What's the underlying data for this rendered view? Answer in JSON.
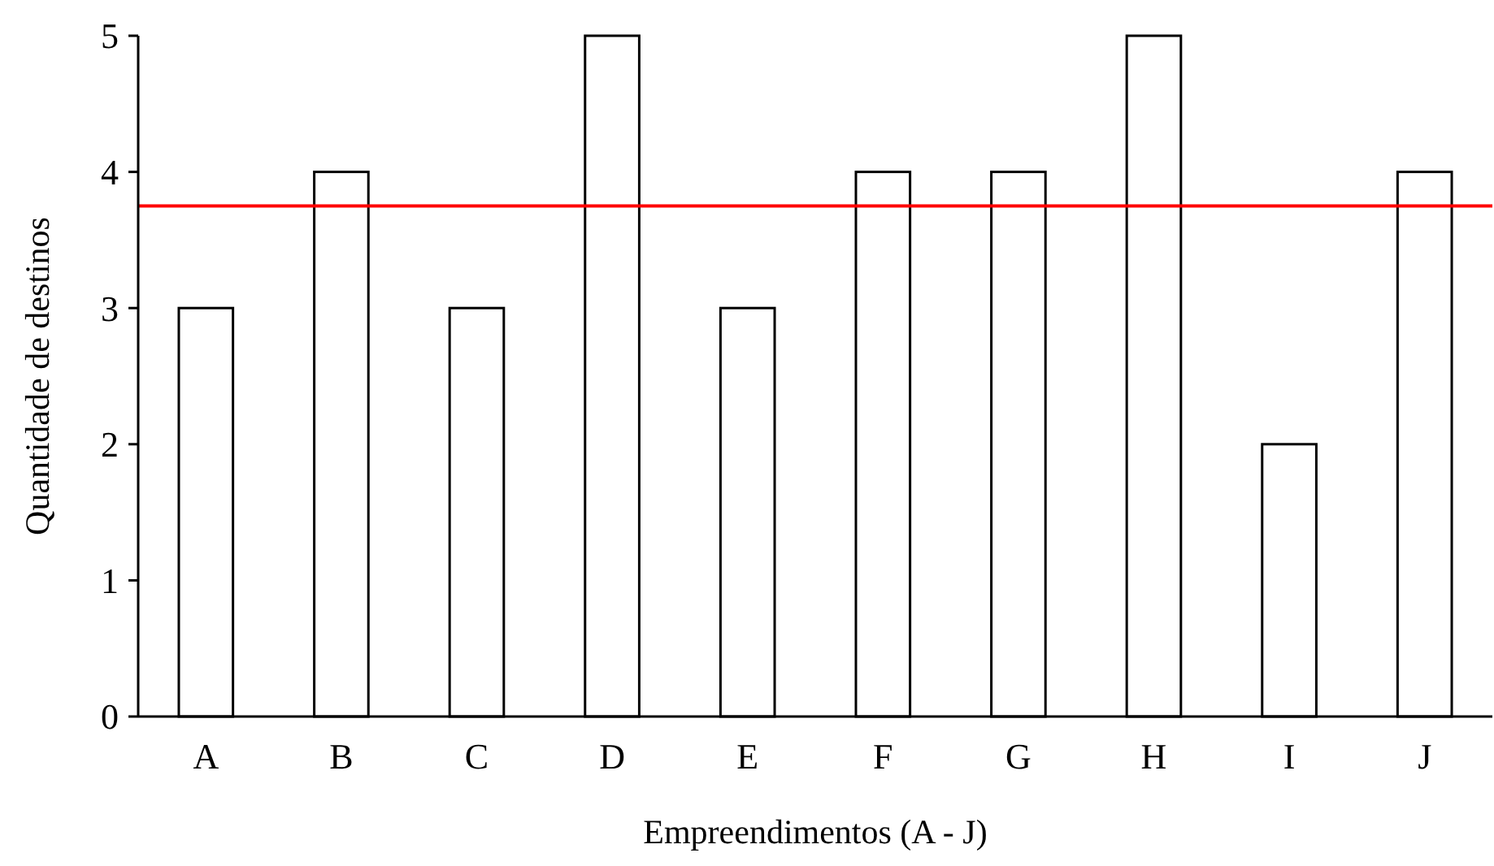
{
  "chart_data": {
    "type": "bar",
    "xlabel": "Empreendimentos (A - J)",
    "ylabel": "Quantidade de destinos",
    "categories": [
      "A",
      "B",
      "C",
      "D",
      "E",
      "F",
      "G",
      "H",
      "I",
      "J"
    ],
    "values": [
      3,
      4,
      3,
      5,
      3,
      4,
      4,
      5,
      2,
      4
    ],
    "color": "#ffffff",
    "ylim": [
      0,
      5
    ],
    "yticks": [
      0,
      1,
      2,
      3,
      4,
      5
    ],
    "grid": false,
    "ref_lines": [
      {
        "axis": "y",
        "value": 3.75,
        "color": "#ff0000"
      }
    ]
  }
}
